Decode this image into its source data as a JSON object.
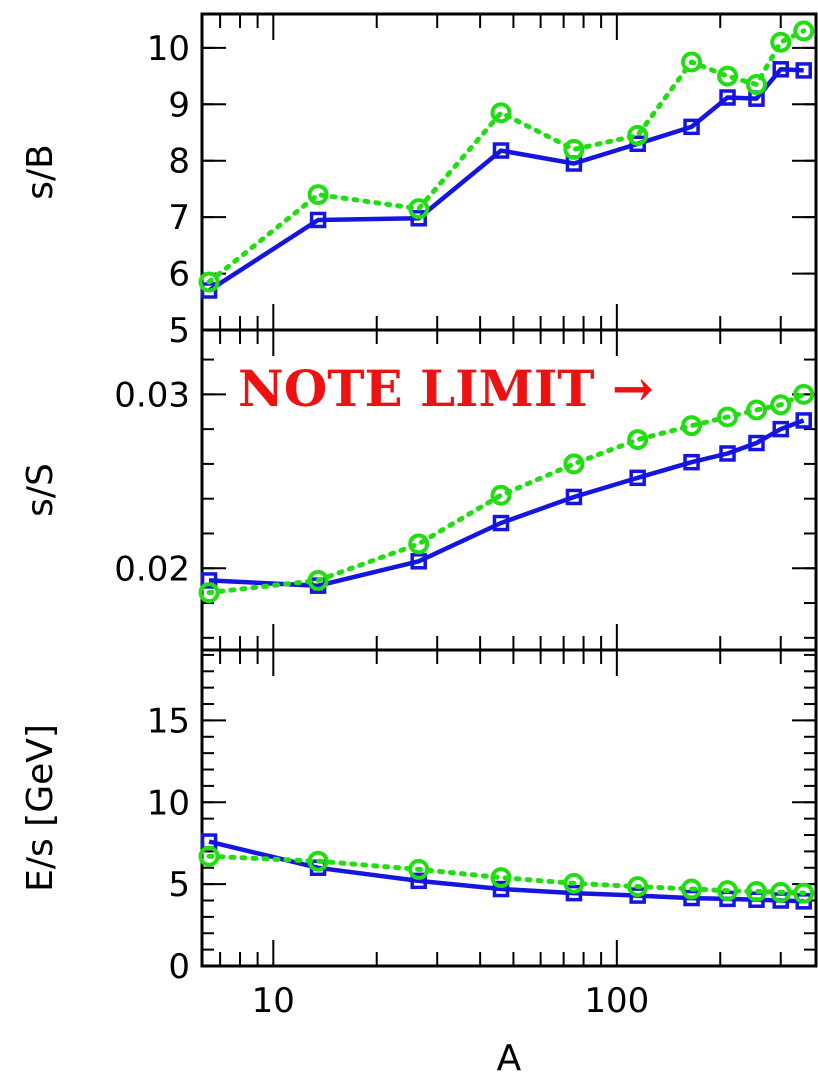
{
  "chart_data": [
    {
      "type": "line",
      "ylabel": "s/B",
      "xscale": "log",
      "xlim": [
        6.2,
        380
      ],
      "ylim": [
        5,
        10.6
      ],
      "yticks": [
        "5",
        "6",
        "7",
        "8",
        "9",
        "10"
      ],
      "ytick_values": [
        5,
        6,
        7,
        8,
        9,
        10
      ],
      "x": [
        6.5,
        13.5,
        26.5,
        46,
        75,
        115,
        165,
        210,
        255,
        300,
        350
      ],
      "series": [
        {
          "style": "solid",
          "marker": "square",
          "color": "#1515e0",
          "values": [
            5.7,
            6.95,
            6.98,
            8.18,
            7.95,
            8.3,
            8.6,
            9.12,
            9.1,
            9.62,
            9.6
          ]
        },
        {
          "style": "dotted",
          "marker": "circle",
          "color": "#22dd11",
          "values": [
            5.85,
            7.4,
            7.15,
            8.85,
            8.2,
            8.45,
            9.75,
            9.5,
            9.35,
            10.1,
            10.3
          ]
        }
      ]
    },
    {
      "type": "line",
      "ylabel": "s/S",
      "xscale": "log",
      "xlim": [
        6.2,
        380
      ],
      "ylim": [
        0.0153,
        0.0337
      ],
      "yticks": [
        "0.02",
        "0.03"
      ],
      "ytick_values": [
        0.02,
        0.03
      ],
      "minor_step": 0.002,
      "annotation": "NOTE LIMIT →",
      "x": [
        6.5,
        13.5,
        26.5,
        46,
        75,
        115,
        165,
        210,
        255,
        300,
        350
      ],
      "series": [
        {
          "style": "solid",
          "marker": "square",
          "color": "#1515e0",
          "values": [
            0.0193,
            0.019,
            0.0204,
            0.0226,
            0.0241,
            0.0252,
            0.0261,
            0.0266,
            0.0272,
            0.028,
            0.0285
          ]
        },
        {
          "style": "dotted",
          "marker": "circle",
          "color": "#22dd11",
          "values": [
            0.0186,
            0.0193,
            0.0214,
            0.0242,
            0.026,
            0.0274,
            0.0282,
            0.0287,
            0.0291,
            0.0294,
            0.03
          ]
        }
      ]
    },
    {
      "type": "line",
      "ylabel": "E/s [GeV]",
      "xlabel": "A",
      "xscale": "log",
      "xlim": [
        6.2,
        380
      ],
      "ylim": [
        0,
        19.3
      ],
      "yticks": [
        "0",
        "5",
        "10",
        "15"
      ],
      "ytick_values": [
        0,
        5,
        10,
        15
      ],
      "xticks": [
        "10",
        "100"
      ],
      "xtick_values": [
        10,
        100
      ],
      "x": [
        6.5,
        13.5,
        26.5,
        46,
        75,
        115,
        165,
        210,
        255,
        300,
        350
      ],
      "series": [
        {
          "style": "solid",
          "marker": "square",
          "color": "#1515e0",
          "values": [
            7.6,
            6.0,
            5.2,
            4.7,
            4.45,
            4.3,
            4.15,
            4.1,
            4.05,
            4.0,
            3.95
          ]
        },
        {
          "style": "dotted",
          "marker": "circle",
          "color": "#22dd11",
          "values": [
            6.7,
            6.4,
            5.9,
            5.4,
            5.05,
            4.85,
            4.7,
            4.6,
            4.55,
            4.5,
            4.45
          ]
        }
      ]
    }
  ]
}
